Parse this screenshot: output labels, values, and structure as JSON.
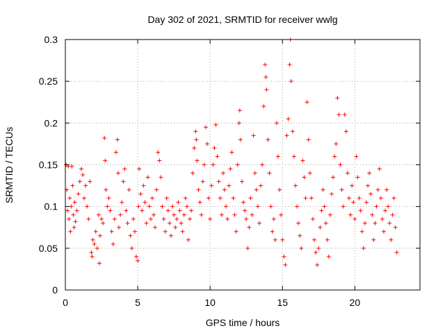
{
  "chart_data": {
    "type": "scatter",
    "title": "Day 302 of 2021, SRMTID for receiver wwlg",
    "xlabel": "GPS time / hours",
    "ylabel": "SRMTID / TECUs",
    "xlim": [
      0,
      24.5
    ],
    "ylim": [
      0,
      0.3
    ],
    "xticks": [
      0,
      5,
      10,
      15,
      20
    ],
    "yticks": [
      0,
      0.05,
      0.1,
      0.15,
      0.2,
      0.25,
      0.3
    ],
    "xtick_labels": [
      "0",
      "5",
      "10",
      "15",
      "20"
    ],
    "ytick_labels": [
      "0",
      "0.05",
      "0.1",
      "0.15",
      "0.2",
      "0.25",
      "0.3"
    ],
    "grid": true,
    "marker": "+",
    "color": "#ff0000",
    "series": [
      {
        "name": "SRMTID",
        "points": [
          [
            0.05,
            0.15
          ],
          [
            0.1,
            0.12
          ],
          [
            0.15,
            0.095
          ],
          [
            0.2,
            0.148
          ],
          [
            0.25,
            0.085
          ],
          [
            0.3,
            0.11
          ],
          [
            0.35,
            0.07
          ],
          [
            0.4,
            0.1
          ],
          [
            0.45,
            0.148
          ],
          [
            0.5,
            0.125
          ],
          [
            0.55,
            0.09
          ],
          [
            0.6,
            0.075
          ],
          [
            0.65,
            0.105
          ],
          [
            0.7,
            0.082
          ],
          [
            0.8,
            0.095
          ],
          [
            0.9,
            0.115
          ],
          [
            1.0,
            0.13
          ],
          [
            1.1,
            0.145
          ],
          [
            1.2,
            0.138
          ],
          [
            1.3,
            0.11
          ],
          [
            1.4,
            0.125
          ],
          [
            1.5,
            0.1
          ],
          [
            1.6,
            0.085
          ],
          [
            1.7,
            0.13
          ],
          [
            1.8,
            0.045
          ],
          [
            1.85,
            0.04
          ],
          [
            1.9,
            0.06
          ],
          [
            2.0,
            0.055
          ],
          [
            2.1,
            0.07
          ],
          [
            2.2,
            0.05
          ],
          [
            2.3,
            0.09
          ],
          [
            2.35,
            0.032
          ],
          [
            2.4,
            0.065
          ],
          [
            2.5,
            0.085
          ],
          [
            2.6,
            0.08
          ],
          [
            2.7,
            0.182
          ],
          [
            2.75,
            0.155
          ],
          [
            2.8,
            0.12
          ],
          [
            2.9,
            0.1
          ],
          [
            3.0,
            0.11
          ],
          [
            3.1,
            0.095
          ],
          [
            3.2,
            0.07
          ],
          [
            3.3,
            0.055
          ],
          [
            3.4,
            0.085
          ],
          [
            3.5,
            0.165
          ],
          [
            3.6,
            0.18
          ],
          [
            3.65,
            0.14
          ],
          [
            3.7,
            0.075
          ],
          [
            3.8,
            0.09
          ],
          [
            3.9,
            0.105
          ],
          [
            4.0,
            0.13
          ],
          [
            4.1,
            0.145
          ],
          [
            4.2,
            0.095
          ],
          [
            4.3,
            0.08
          ],
          [
            4.4,
            0.12
          ],
          [
            4.5,
            0.065
          ],
          [
            4.6,
            0.05
          ],
          [
            4.7,
            0.085
          ],
          [
            4.8,
            0.07
          ],
          [
            4.9,
            0.04
          ],
          [
            5.0,
            0.035
          ],
          [
            5.05,
            0.1
          ],
          [
            5.1,
            0.145
          ],
          [
            5.2,
            0.115
          ],
          [
            5.3,
            0.095
          ],
          [
            5.4,
            0.125
          ],
          [
            5.5,
            0.105
          ],
          [
            5.6,
            0.08
          ],
          [
            5.7,
            0.135
          ],
          [
            5.8,
            0.1
          ],
          [
            5.9,
            0.085
          ],
          [
            6.0,
            0.11
          ],
          [
            6.1,
            0.09
          ],
          [
            6.2,
            0.075
          ],
          [
            6.3,
            0.12
          ],
          [
            6.4,
            0.165
          ],
          [
            6.5,
            0.155
          ],
          [
            6.6,
            0.135
          ],
          [
            6.7,
            0.1
          ],
          [
            6.8,
            0.085
          ],
          [
            6.9,
            0.07
          ],
          [
            7.0,
            0.11
          ],
          [
            7.1,
            0.095
          ],
          [
            7.2,
            0.08
          ],
          [
            7.3,
            0.065
          ],
          [
            7.4,
            0.1
          ],
          [
            7.5,
            0.09
          ],
          [
            7.6,
            0.075
          ],
          [
            7.7,
            0.085
          ],
          [
            7.8,
            0.105
          ],
          [
            7.9,
            0.095
          ],
          [
            8.0,
            0.08
          ],
          [
            8.1,
            0.07
          ],
          [
            8.2,
            0.09
          ],
          [
            8.3,
            0.11
          ],
          [
            8.4,
            0.1
          ],
          [
            8.5,
            0.06
          ],
          [
            8.6,
            0.085
          ],
          [
            8.7,
            0.095
          ],
          [
            8.8,
            0.14
          ],
          [
            8.9,
            0.17
          ],
          [
            9.0,
            0.19
          ],
          [
            9.05,
            0.18
          ],
          [
            9.1,
            0.155
          ],
          [
            9.2,
            0.12
          ],
          [
            9.3,
            0.105
          ],
          [
            9.4,
            0.09
          ],
          [
            9.5,
            0.13
          ],
          [
            9.6,
            0.15
          ],
          [
            9.7,
            0.195
          ],
          [
            9.8,
            0.175
          ],
          [
            9.9,
            0.11
          ],
          [
            10.0,
            0.085
          ],
          [
            10.1,
            0.125
          ],
          [
            10.2,
            0.15
          ],
          [
            10.3,
            0.17
          ],
          [
            10.4,
            0.198
          ],
          [
            10.5,
            0.16
          ],
          [
            10.6,
            0.13
          ],
          [
            10.7,
            0.11
          ],
          [
            10.8,
            0.09
          ],
          [
            10.9,
            0.14
          ],
          [
            11.0,
            0.12
          ],
          [
            11.1,
            0.1
          ],
          [
            11.2,
            0.085
          ],
          [
            11.3,
            0.125
          ],
          [
            11.4,
            0.145
          ],
          [
            11.5,
            0.165
          ],
          [
            11.6,
            0.11
          ],
          [
            11.7,
            0.09
          ],
          [
            11.8,
            0.07
          ],
          [
            11.9,
            0.15
          ],
          [
            12.0,
            0.2
          ],
          [
            12.05,
            0.215
          ],
          [
            12.1,
            0.18
          ],
          [
            12.2,
            0.13
          ],
          [
            12.3,
            0.105
          ],
          [
            12.4,
            0.095
          ],
          [
            12.5,
            0.085
          ],
          [
            12.6,
            0.05
          ],
          [
            12.7,
            0.075
          ],
          [
            12.8,
            0.11
          ],
          [
            12.9,
            0.09
          ],
          [
            13.0,
            0.185
          ],
          [
            13.1,
            0.14
          ],
          [
            13.2,
            0.12
          ],
          [
            13.3,
            0.1
          ],
          [
            13.4,
            0.08
          ],
          [
            13.5,
            0.125
          ],
          [
            13.6,
            0.15
          ],
          [
            13.7,
            0.22
          ],
          [
            13.8,
            0.27
          ],
          [
            13.85,
            0.255
          ],
          [
            13.9,
            0.24
          ],
          [
            14.0,
            0.18
          ],
          [
            14.1,
            0.14
          ],
          [
            14.2,
            0.1
          ],
          [
            14.3,
            0.07
          ],
          [
            14.4,
            0.085
          ],
          [
            14.5,
            0.06
          ],
          [
            14.6,
            0.2
          ],
          [
            14.7,
            0.16
          ],
          [
            14.8,
            0.12
          ],
          [
            14.9,
            0.09
          ],
          [
            15.0,
            0.06
          ],
          [
            15.1,
            0.04
          ],
          [
            15.2,
            0.03
          ],
          [
            15.3,
            0.185
          ],
          [
            15.4,
            0.205
          ],
          [
            15.5,
            0.27
          ],
          [
            15.55,
            0.3
          ],
          [
            15.6,
            0.25
          ],
          [
            15.7,
            0.19
          ],
          [
            15.8,
            0.16
          ],
          [
            15.9,
            0.125
          ],
          [
            16.0,
            0.1
          ],
          [
            16.1,
            0.08
          ],
          [
            16.2,
            0.065
          ],
          [
            16.3,
            0.05
          ],
          [
            16.4,
            0.155
          ],
          [
            16.5,
            0.135
          ],
          [
            16.6,
            0.11
          ],
          [
            16.7,
            0.225
          ],
          [
            16.8,
            0.18
          ],
          [
            16.9,
            0.14
          ],
          [
            17.0,
            0.11
          ],
          [
            17.1,
            0.085
          ],
          [
            17.2,
            0.06
          ],
          [
            17.3,
            0.045
          ],
          [
            17.4,
            0.03
          ],
          [
            17.5,
            0.05
          ],
          [
            17.6,
            0.075
          ],
          [
            17.7,
            0.095
          ],
          [
            17.8,
            0.12
          ],
          [
            17.9,
            0.1
          ],
          [
            18.0,
            0.08
          ],
          [
            18.1,
            0.06
          ],
          [
            18.2,
            0.04
          ],
          [
            18.3,
            0.09
          ],
          [
            18.4,
            0.115
          ],
          [
            18.5,
            0.135
          ],
          [
            18.6,
            0.16
          ],
          [
            18.7,
            0.175
          ],
          [
            18.8,
            0.23
          ],
          [
            18.9,
            0.21
          ],
          [
            19.0,
            0.15
          ],
          [
            19.1,
            0.12
          ],
          [
            19.2,
            0.1
          ],
          [
            19.3,
            0.21
          ],
          [
            19.4,
            0.19
          ],
          [
            19.5,
            0.14
          ],
          [
            19.6,
            0.11
          ],
          [
            19.7,
            0.09
          ],
          [
            19.8,
            0.125
          ],
          [
            19.9,
            0.105
          ],
          [
            20.0,
            0.085
          ],
          [
            20.1,
            0.16
          ],
          [
            20.2,
            0.135
          ],
          [
            20.3,
            0.11
          ],
          [
            20.4,
            0.095
          ],
          [
            20.5,
            0.07
          ],
          [
            20.6,
            0.05
          ],
          [
            20.7,
            0.08
          ],
          [
            20.8,
            0.105
          ],
          [
            20.9,
            0.125
          ],
          [
            21.0,
            0.14
          ],
          [
            21.1,
            0.115
          ],
          [
            21.2,
            0.09
          ],
          [
            21.3,
            0.06
          ],
          [
            21.4,
            0.08
          ],
          [
            21.5,
            0.1
          ],
          [
            21.6,
            0.12
          ],
          [
            21.7,
            0.145
          ],
          [
            21.8,
            0.11
          ],
          [
            21.9,
            0.085
          ],
          [
            22.0,
            0.07
          ],
          [
            22.1,
            0.095
          ],
          [
            22.2,
            0.12
          ],
          [
            22.3,
            0.1
          ],
          [
            22.4,
            0.08
          ],
          [
            22.5,
            0.06
          ],
          [
            22.6,
            0.09
          ],
          [
            22.7,
            0.11
          ],
          [
            22.8,
            0.075
          ],
          [
            22.9,
            0.045
          ]
        ]
      }
    ]
  }
}
